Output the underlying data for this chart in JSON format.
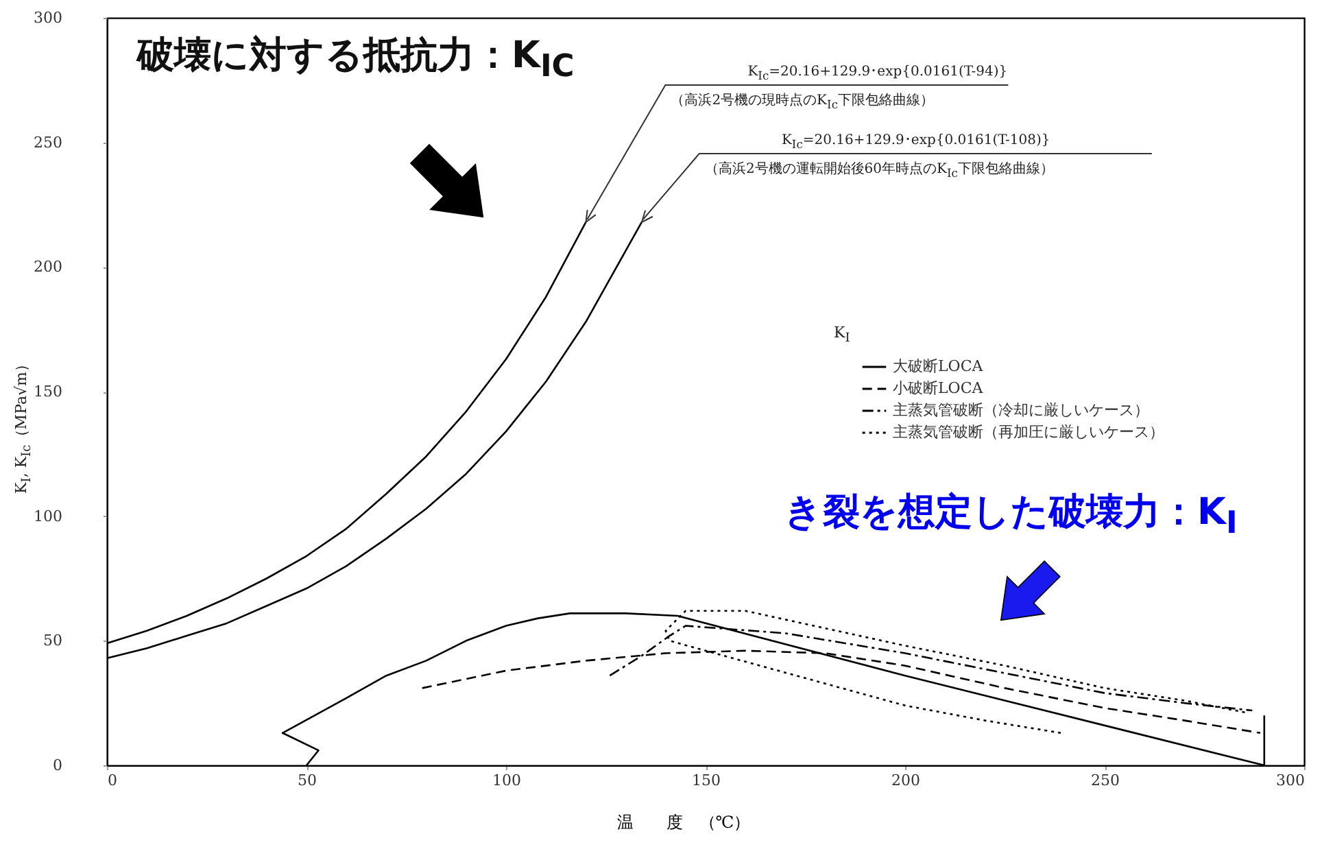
{
  "chart_data": {
    "type": "line",
    "xlabel": "温　　度　（℃）",
    "ylabel": "K$_{I}$, K$_{Ic}$（MPa√m）",
    "legend_title": "K$_{I}$",
    "xlim": [
      0,
      300
    ],
    "xticks": [
      0,
      50,
      100,
      150,
      200,
      250,
      300
    ],
    "ylim": [
      0,
      300
    ],
    "yticks": [
      0,
      50,
      100,
      150,
      200,
      250,
      300
    ],
    "grid": false,
    "legend": "right",
    "marker": "none",
    "series": [
      {
        "color": "#000000",
        "line_style": "solid",
        "x": [
          0,
          10,
          20,
          30,
          40,
          50,
          60,
          70,
          80,
          90,
          100,
          110,
          120
        ],
        "values": [
          49,
          54,
          60,
          67,
          75,
          84,
          95,
          109,
          124,
          142,
          163,
          188,
          218
        ]
      },
      {
        "color": "#000000",
        "line_style": "solid",
        "x": [
          0,
          10,
          20,
          30,
          40,
          50,
          60,
          70,
          80,
          90,
          100,
          110,
          120,
          134
        ],
        "values": [
          43,
          47,
          52,
          57,
          64,
          71,
          80,
          91,
          103,
          117,
          134,
          154,
          178,
          218
        ]
      },
      {
        "name": "大破断LOCA",
        "color": "#000000",
        "line_style": "solid",
        "x": [
          50,
          53,
          44,
          60,
          70,
          80,
          90,
          100,
          108,
          116,
          130,
          143,
          200,
          250,
          290,
          290
        ],
        "values": [
          0,
          6,
          13,
          27,
          36,
          42,
          50,
          56,
          59,
          61,
          61,
          60,
          36,
          16,
          0,
          20
        ]
      },
      {
        "name": "小破断LOCA",
        "color": "#000000",
        "line_style": "dashed",
        "x": [
          79,
          100,
          120,
          140,
          160,
          180,
          200,
          225,
          250,
          270,
          289
        ],
        "values": [
          31,
          38,
          42,
          45,
          46,
          45,
          40,
          31,
          23,
          18,
          13
        ]
      },
      {
        "name": "主蒸気管破断（冷却に厳しいケース）",
        "color": "#000000",
        "line_style": "dashdot",
        "x": [
          126,
          134,
          141,
          145,
          170,
          200,
          225,
          250,
          270,
          287
        ],
        "values": [
          36,
          44,
          52,
          56,
          53,
          45,
          37,
          29,
          25,
          22
        ]
      },
      {
        "name": "主蒸気管破断（再加圧に厳しいケース）",
        "color": "#000000",
        "line_style": "dotted",
        "x": [
          239,
          220,
          200,
          175,
          150,
          141,
          140,
          145,
          160,
          200,
          225,
          250,
          270,
          286
        ],
        "values": [
          13,
          18,
          24,
          35,
          46,
          50,
          54,
          62,
          62,
          48,
          40,
          31,
          26,
          21
        ]
      }
    ],
    "annotations": [
      {
        "text": "K$_{Ic}$=20.16+129.9･exp{0.0161(T-94)}\n（高浜2号機の現時点のK$_{Ic}$下限包絡曲線）",
        "x": 120,
        "y": 218
      },
      {
        "text": "K$_{Ic}$=20.16+129.9･exp{0.0161(T-108)}\n（高浜2号機の運転開始後60年時点のK$_{Ic}$下限包絡曲線）",
        "x": 134,
        "y": 218
      },
      "破壊に対する抵抗力：K$_{IC}$",
      "き裂を想定した破壊力：K$_{I}$"
    ]
  }
}
